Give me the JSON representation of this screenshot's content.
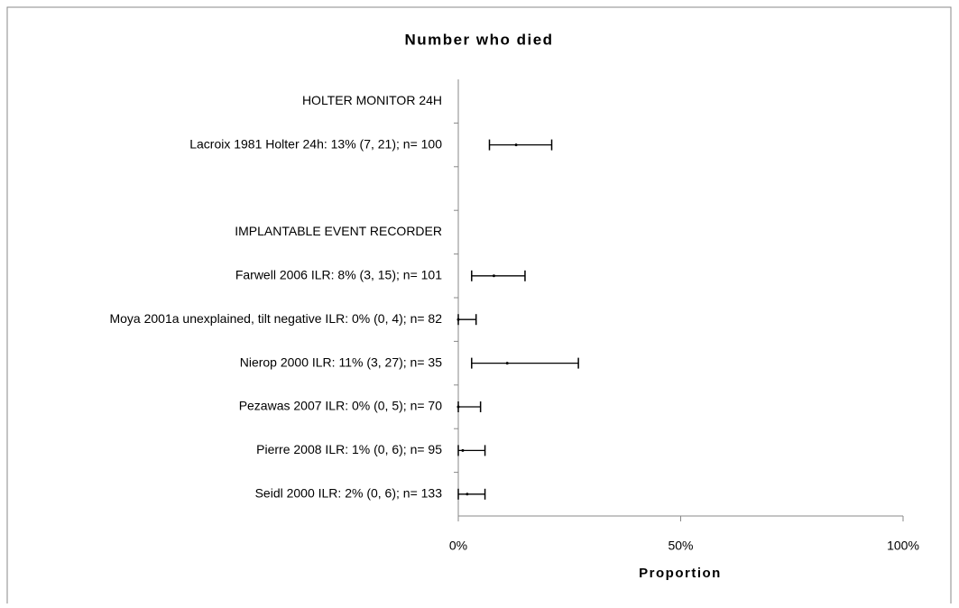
{
  "chart_data": {
    "type": "forest",
    "title": "Number who died",
    "x_label": "Proportion",
    "categories": [
      "HOLTER MONITOR 24H",
      "Lacroix 1981 Holter 24h: 13% (7, 21); n= 100",
      null,
      "IMPLANTABLE EVENT RECORDER",
      "Farwell 2006 ILR: 8% (3, 15); n= 101",
      "Moya 2001a unexplained, tilt negative ILR: 0% (0, 4); n= 82",
      "Nierop 2000 ILR: 11% (3, 27); n= 35",
      "Pezawas 2007 ILR: 0% (0, 5); n= 70",
      "Pierre 2008 ILR: 1% (0, 6); n= 95",
      "Seidl 2000 ILR: 2% (0, 6); n= 133"
    ],
    "values": [
      null,
      13,
      null,
      null,
      8,
      0,
      11,
      0,
      1,
      2
    ],
    "lower": [
      null,
      7,
      null,
      null,
      3,
      0,
      3,
      0,
      0,
      0
    ],
    "upper": [
      null,
      21,
      null,
      null,
      15,
      4,
      27,
      5,
      6,
      6
    ],
    "color": "#000000",
    "xlim": [
      0,
      100
    ],
    "xticks": [
      {
        "value": 0,
        "label": "0%"
      },
      {
        "value": 50,
        "label": "50%"
      },
      {
        "value": 100,
        "label": "100%"
      }
    ]
  }
}
